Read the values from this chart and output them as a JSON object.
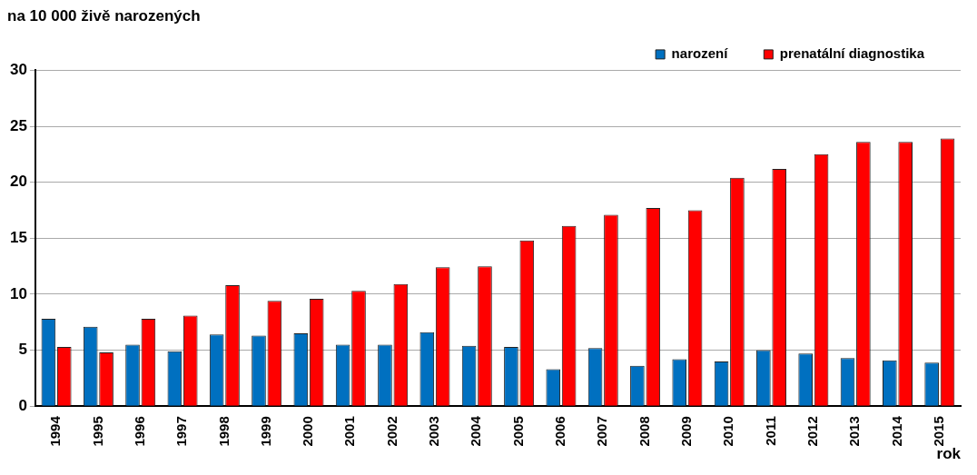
{
  "chart_data": {
    "type": "bar",
    "title": "na 10 000 živě narozených",
    "xlabel": "rok",
    "categories": [
      "1994",
      "1995",
      "1996",
      "1997",
      "1998",
      "1999",
      "2000",
      "2001",
      "2002",
      "2003",
      "2004",
      "2005",
      "2006",
      "2007",
      "2008",
      "2009",
      "2010",
      "2011",
      "2012",
      "2013",
      "2014",
      "2015"
    ],
    "series": [
      {
        "name": "narození",
        "color": "#0070c0",
        "values": [
          7.8,
          7.1,
          5.5,
          4.9,
          6.4,
          6.3,
          6.5,
          5.5,
          5.5,
          6.6,
          5.4,
          5.3,
          3.3,
          5.2,
          3.6,
          4.2,
          4.0,
          5.0,
          4.7,
          4.3,
          4.1,
          3.9
        ]
      },
      {
        "name": "prenatální diagnostika",
        "color": "#ff0000",
        "values": [
          5.3,
          4.8,
          7.8,
          8.1,
          10.8,
          9.4,
          9.6,
          10.3,
          10.9,
          12.4,
          12.5,
          14.8,
          16.1,
          17.1,
          17.7,
          17.5,
          20.4,
          21.2,
          22.5,
          23.6,
          23.6,
          23.9
        ]
      }
    ],
    "ylim": [
      0,
      30
    ],
    "yticks": [
      0,
      5,
      10,
      15,
      20,
      25,
      30
    ],
    "grid": "y",
    "legend": "top right"
  }
}
